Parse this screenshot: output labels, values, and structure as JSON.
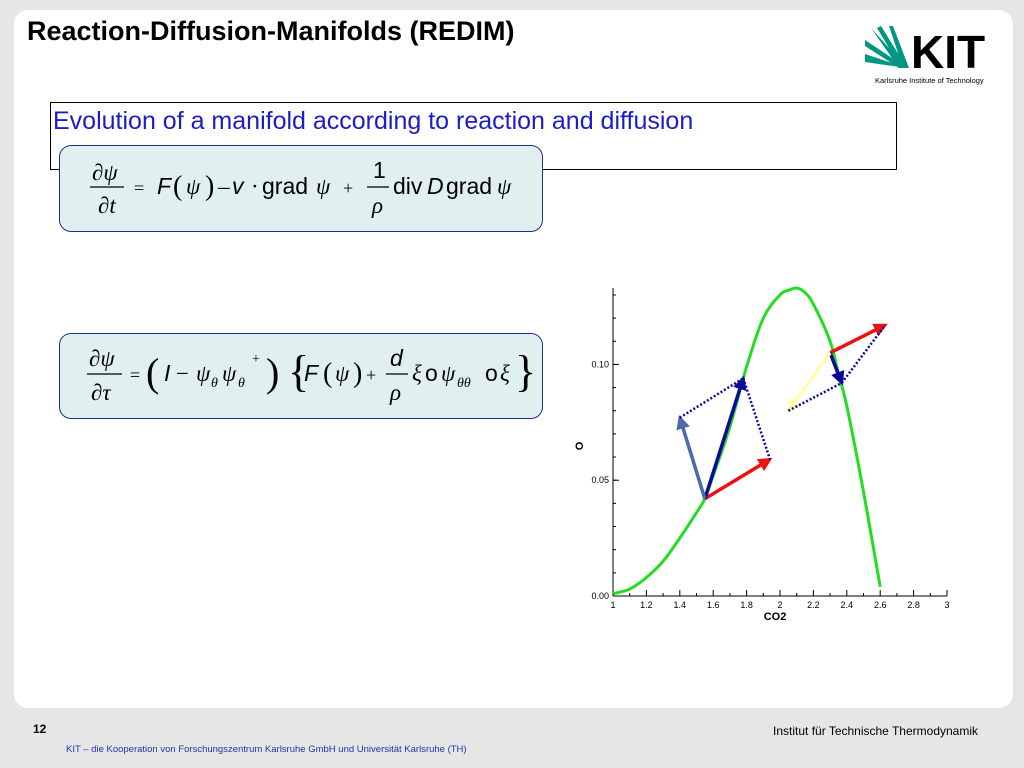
{
  "slide": {
    "title": "Reaction-Diffusion-Manifolds (REDIM)",
    "subtitle": "Evolution of a manifold according to reaction and diffusion",
    "page_number": "12",
    "institute": "Institut für Technische Thermodynamik",
    "kit_footer": "KIT – die Kooperation von Forschungszentrum Karlsruhe GmbH und Universität Karlsruhe (TH)"
  },
  "logo": {
    "text": "KIT",
    "tagline": "Karlsruhe Institute of Technology",
    "color": "#009682"
  },
  "equation1": {
    "lhs_num": "∂ψ",
    "lhs_den": "∂t",
    "eq": "=",
    "F": "F",
    "psi": "ψ",
    "minus": "–",
    "v": "v",
    "dot": "·",
    "grad": "grad",
    "plus": "+",
    "one": "1",
    "rho": "ρ",
    "div": "div",
    "D": "D",
    "grad2": "grad",
    "psi2": "ψ"
  },
  "equation2": {
    "lhs_num": "∂ψ",
    "lhs_den": "∂τ",
    "eq": "=",
    "I": "I",
    "minus": "−",
    "psi_theta": "ψ",
    "theta_sub": "θ",
    "plus_sup": "+",
    "F": "F",
    "psi": "ψ",
    "plus": "+",
    "d": "d",
    "rho": "ρ",
    "xi": "ξ",
    "o": "o",
    "theta_theta": "θθ",
    "o2": "o",
    "xi2": "ξ"
  },
  "chart_data": {
    "type": "line",
    "xlabel": "CO2",
    "ylabel": "O",
    "xlim": [
      1,
      3
    ],
    "ylim": [
      0,
      0.133
    ],
    "x_ticks": [
      "1",
      "1.2",
      "1.4",
      "1.6",
      "1.8",
      "2",
      "2.2",
      "2.4",
      "2.6",
      "2.8",
      "3"
    ],
    "y_ticks": [
      "0.00",
      "0.05",
      "0.10"
    ],
    "series": [
      {
        "color": "#22dd22",
        "x": [
          1.0,
          1.1,
          1.2,
          1.3,
          1.4,
          1.5,
          1.55,
          1.6,
          1.7,
          1.8,
          1.9,
          2.0,
          2.05,
          2.1,
          2.15,
          2.2,
          2.3,
          2.35,
          2.4,
          2.5,
          2.6
        ],
        "y": [
          0.001,
          0.003,
          0.008,
          0.015,
          0.025,
          0.036,
          0.042,
          0.052,
          0.073,
          0.099,
          0.12,
          0.13,
          0.132,
          0.133,
          0.131,
          0.126,
          0.11,
          0.096,
          0.082,
          0.045,
          0.004
        ]
      }
    ],
    "arrows": [
      {
        "color": "#ee1111",
        "style": "solid",
        "from": [
          1.55,
          0.042
        ],
        "to": [
          1.94,
          0.059
        ]
      },
      {
        "color": "#0a0a99",
        "style": "solid",
        "from": [
          1.55,
          0.042
        ],
        "to": [
          1.78,
          0.094
        ]
      },
      {
        "color": "#4a6aaa",
        "style": "solid",
        "from": [
          1.55,
          0.042
        ],
        "to": [
          1.4,
          0.077
        ]
      },
      {
        "color": "#0a0a99",
        "style": "dotted",
        "from": [
          1.4,
          0.077
        ],
        "to": [
          1.78,
          0.094
        ]
      },
      {
        "color": "#0a0a99",
        "style": "dotted",
        "from": [
          1.78,
          0.094
        ],
        "to": [
          1.94,
          0.059
        ]
      },
      {
        "color": "#ee1111",
        "style": "solid",
        "from": [
          2.3,
          0.105
        ],
        "to": [
          2.63,
          0.117
        ]
      },
      {
        "color": "#0a0a99",
        "style": "solid",
        "from": [
          2.3,
          0.105
        ],
        "to": [
          2.37,
          0.092
        ]
      },
      {
        "color": "#ffffaa",
        "style": "solid",
        "from": [
          2.3,
          0.105
        ],
        "to": [
          2.05,
          0.08
        ]
      },
      {
        "color": "#0a0a99",
        "style": "dotted",
        "from": [
          2.05,
          0.08
        ],
        "to": [
          2.37,
          0.092
        ]
      },
      {
        "color": "#0a0a99",
        "style": "dotted",
        "from": [
          2.37,
          0.092
        ],
        "to": [
          2.63,
          0.117
        ]
      }
    ]
  }
}
